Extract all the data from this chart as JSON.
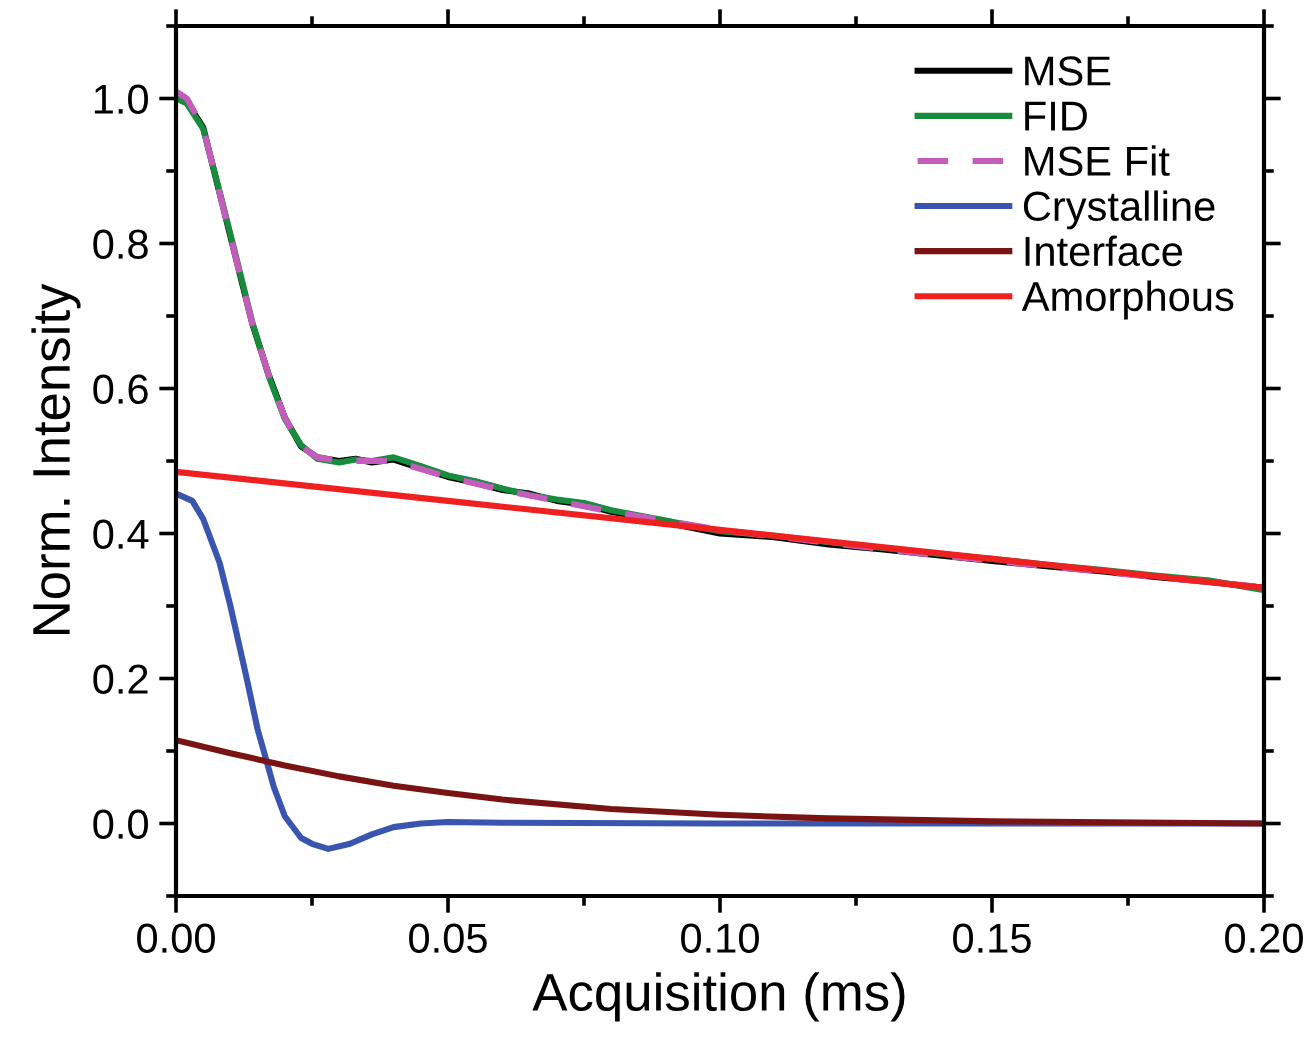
{
  "chart_data": {
    "type": "line",
    "xlabel": "Acquisition (ms)",
    "ylabel": "Norm. Intensity",
    "xlim": [
      0,
      0.2
    ],
    "ylim": [
      -0.1,
      1.1
    ],
    "xticks": [
      {
        "value": 0,
        "label": "0.00"
      },
      {
        "value": 0.05,
        "label": "0.05"
      },
      {
        "value": 0.1,
        "label": "0.10"
      },
      {
        "value": 0.15,
        "label": "0.15"
      },
      {
        "value": 0.2,
        "label": "0.20"
      }
    ],
    "yticks": [
      {
        "value": 0,
        "label": "0.0"
      },
      {
        "value": 0.2,
        "label": "0.2"
      },
      {
        "value": 0.4,
        "label": "0.4"
      },
      {
        "value": 0.6,
        "label": "0.6"
      },
      {
        "value": 0.8,
        "label": "0.8"
      },
      {
        "value": 1.0,
        "label": "1.0"
      }
    ],
    "grid": false,
    "legend": "top right",
    "marker": "none",
    "series": [
      {
        "name": "MSE",
        "color": "#000000",
        "line_style": "solid",
        "x": [
          0,
          0.002,
          0.005,
          0.008,
          0.011,
          0.014,
          0.017,
          0.02,
          0.023,
          0.026,
          0.03,
          0.033,
          0.036,
          0.04,
          0.045,
          0.05,
          0.055,
          0.06,
          0.065,
          0.07,
          0.075,
          0.08,
          0.09,
          0.1,
          0.11,
          0.12,
          0.13,
          0.14,
          0.15,
          0.16,
          0.17,
          0.18,
          0.19,
          0.2
        ],
        "values": [
          1.0,
          0.995,
          0.96,
          0.87,
          0.78,
          0.69,
          0.62,
          0.56,
          0.52,
          0.505,
          0.5,
          0.503,
          0.498,
          0.502,
          0.49,
          0.478,
          0.47,
          0.46,
          0.455,
          0.445,
          0.44,
          0.43,
          0.415,
          0.4,
          0.395,
          0.385,
          0.378,
          0.37,
          0.362,
          0.355,
          0.348,
          0.34,
          0.333,
          0.325
        ]
      },
      {
        "name": "FID",
        "color": "#168c3c",
        "line_style": "solid",
        "x": [
          0,
          0.002,
          0.005,
          0.008,
          0.011,
          0.014,
          0.017,
          0.02,
          0.023,
          0.026,
          0.03,
          0.033,
          0.036,
          0.04,
          0.045,
          0.05,
          0.055,
          0.06,
          0.065,
          0.07,
          0.075,
          0.08,
          0.09,
          0.1,
          0.11,
          0.12,
          0.13,
          0.14,
          0.15,
          0.16,
          0.17,
          0.18,
          0.19,
          0.2
        ],
        "values": [
          1.0,
          0.993,
          0.958,
          0.872,
          0.783,
          0.692,
          0.618,
          0.558,
          0.522,
          0.503,
          0.498,
          0.502,
          0.5,
          0.505,
          0.493,
          0.48,
          0.472,
          0.462,
          0.453,
          0.447,
          0.442,
          0.432,
          0.418,
          0.403,
          0.397,
          0.388,
          0.38,
          0.372,
          0.365,
          0.357,
          0.35,
          0.342,
          0.335,
          0.322
        ]
      },
      {
        "name": "MSE Fit",
        "color": "#c45cbc",
        "line_style": "dashed",
        "x": [
          0,
          0.002,
          0.005,
          0.008,
          0.011,
          0.014,
          0.017,
          0.02,
          0.023,
          0.026,
          0.03,
          0.04,
          0.05,
          0.06,
          0.08,
          0.1,
          0.12,
          0.14,
          0.16,
          0.18,
          0.2
        ],
        "values": [
          1.01,
          1.0,
          0.96,
          0.87,
          0.78,
          0.69,
          0.62,
          0.56,
          0.52,
          0.505,
          0.5,
          0.5,
          0.478,
          0.46,
          0.43,
          0.405,
          0.387,
          0.37,
          0.355,
          0.34,
          0.326
        ]
      },
      {
        "name": "Crystalline",
        "color": "#3a55b0",
        "line_style": "solid",
        "x": [
          0,
          0.003,
          0.005,
          0.008,
          0.01,
          0.013,
          0.015,
          0.018,
          0.02,
          0.023,
          0.025,
          0.028,
          0.032,
          0.036,
          0.04,
          0.045,
          0.05,
          0.06,
          0.1,
          0.15,
          0.2
        ],
        "values": [
          0.455,
          0.445,
          0.42,
          0.36,
          0.3,
          0.2,
          0.13,
          0.05,
          0.01,
          -0.02,
          -0.028,
          -0.035,
          -0.028,
          -0.015,
          -0.005,
          0.0,
          0.002,
          0.001,
          0.0,
          0.0,
          0.0
        ]
      },
      {
        "name": "Interface",
        "color": "#7a1414",
        "line_style": "solid",
        "x": [
          0,
          0.01,
          0.02,
          0.03,
          0.04,
          0.05,
          0.06,
          0.08,
          0.1,
          0.12,
          0.15,
          0.2
        ],
        "values": [
          0.115,
          0.097,
          0.08,
          0.065,
          0.052,
          0.042,
          0.033,
          0.02,
          0.012,
          0.007,
          0.003,
          0.0
        ]
      },
      {
        "name": "Amorphous",
        "color": "#f02020",
        "line_style": "solid",
        "x": [
          0,
          0.05,
          0.1,
          0.15,
          0.2
        ],
        "values": [
          0.485,
          0.445,
          0.405,
          0.365,
          0.325
        ]
      }
    ]
  }
}
